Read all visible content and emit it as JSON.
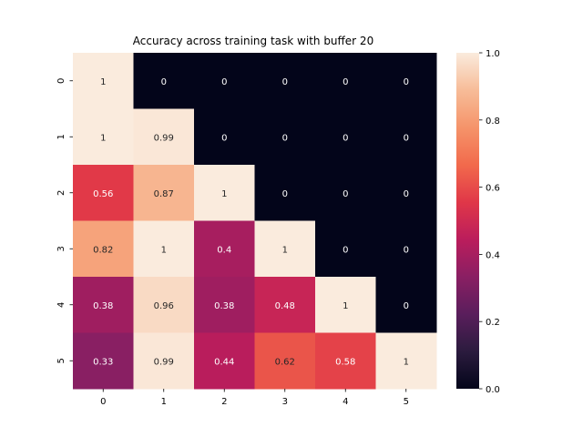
{
  "chart_data": {
    "type": "heatmap",
    "title": "Accuracy across training task with buffer 20",
    "xlabel": "",
    "ylabel": "",
    "x_categories": [
      "0",
      "1",
      "2",
      "3",
      "4",
      "5"
    ],
    "y_categories": [
      "0",
      "1",
      "2",
      "3",
      "4",
      "5"
    ],
    "values": [
      [
        1,
        0,
        0,
        0,
        0,
        0
      ],
      [
        1,
        0.99,
        0,
        0,
        0,
        0
      ],
      [
        0.56,
        0.87,
        1,
        0,
        0,
        0
      ],
      [
        0.82,
        1,
        0.4,
        1,
        0,
        0
      ],
      [
        0.38,
        0.96,
        0.38,
        0.48,
        1,
        0
      ],
      [
        0.33,
        0.99,
        0.44,
        0.62,
        0.58,
        1
      ]
    ],
    "annotations": [
      [
        "1",
        "0",
        "0",
        "0",
        "0",
        "0"
      ],
      [
        "1",
        "0.99",
        "0",
        "0",
        "0",
        "0"
      ],
      [
        "0.56",
        "0.87",
        "1",
        "0",
        "0",
        "0"
      ],
      [
        "0.82",
        "1",
        "0.4",
        "1",
        "0",
        "0"
      ],
      [
        "0.38",
        "0.96",
        "0.38",
        "0.48",
        "1",
        "0"
      ],
      [
        "0.33",
        "0.99",
        "0.44",
        "0.62",
        "0.58",
        "1"
      ]
    ],
    "colorbar": {
      "min": 0.0,
      "max": 1.0,
      "ticks": [
        "0.0",
        "0.2",
        "0.4",
        "0.6",
        "0.8",
        "1.0"
      ]
    },
    "colormap": "rocket",
    "colormap_stops": [
      "#03051a",
      "#2b1b3e",
      "#5a1e5c",
      "#8a1f63",
      "#bb1d5c",
      "#e03748",
      "#f26a4c",
      "#f5946a",
      "#f7bc98",
      "#faebdd"
    ],
    "legend": "colorbar-right",
    "grid": false
  }
}
